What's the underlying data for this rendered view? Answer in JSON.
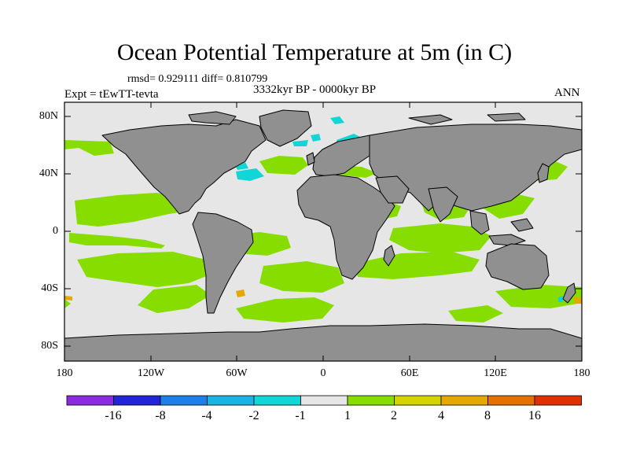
{
  "title": "Ocean Potential Temperature at 5m (in C)",
  "stats": "rmsd= 0.929111 diff= 0.810799",
  "experiment": "Expt = tEwTT-tevta",
  "period": "3332kyr BP - 0000kyr BP",
  "season": "ANN",
  "y_ticks": [
    "80N",
    "40N",
    "0",
    "40S",
    "80S"
  ],
  "x_ticks": [
    "180",
    "120W",
    "60W",
    "0",
    "60E",
    "120E",
    "180"
  ],
  "colorbar": {
    "colors": [
      "#8a2be2",
      "#2323d8",
      "#1e7fe8",
      "#1ab3e6",
      "#11d6d6",
      "#e6e6e6",
      "#88dd00",
      "#d4d400",
      "#e5a800",
      "#e57000",
      "#e03000"
    ],
    "labels": [
      "-16",
      "-8",
      "-4",
      "-2",
      "-1",
      "1",
      "2",
      "4",
      "8",
      "16"
    ]
  },
  "colors": {
    "land": "#909090",
    "ocean_neutral": "#e6e6e6",
    "warm": "#88dd00",
    "cool": "#11d6d6"
  }
}
